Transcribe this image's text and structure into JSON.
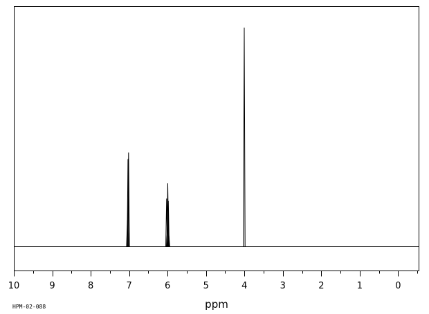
{
  "chart_data": {
    "type": "line",
    "title": "",
    "xlabel": "ppm",
    "ylabel": "",
    "sample_code": "HPM-02-088",
    "xlim": [
      10,
      -0.55
    ],
    "x_reversed": true,
    "ylim": [
      0,
      1
    ],
    "grid": false,
    "x_ticks": [
      "10",
      "9",
      "8",
      "7",
      "6",
      "5",
      "4",
      "3",
      "2",
      "1",
      "0"
    ],
    "x_tick_values": [
      10,
      9,
      8,
      7,
      6,
      5,
      4,
      3,
      2,
      1,
      0
    ],
    "minor_tick_step": 0.5,
    "series": [
      {
        "peaks": [
          {
            "ppm": 7.045,
            "intensity": 0.12
          },
          {
            "ppm": 7.03,
            "intensity": 0.4
          },
          {
            "ppm": 7.015,
            "intensity": 0.43
          },
          {
            "ppm": 6.025,
            "intensity": 0.22
          },
          {
            "ppm": 6.01,
            "intensity": 0.06
          },
          {
            "ppm": 5.995,
            "intensity": 0.29
          },
          {
            "ppm": 5.98,
            "intensity": 0.21
          },
          {
            "ppm": 5.965,
            "intensity": 0.05
          },
          {
            "ppm": 4.005,
            "intensity": 1.0
          }
        ]
      }
    ],
    "colors": {
      "line": "#000000",
      "background": "#ffffff",
      "frame": "#000000"
    }
  }
}
